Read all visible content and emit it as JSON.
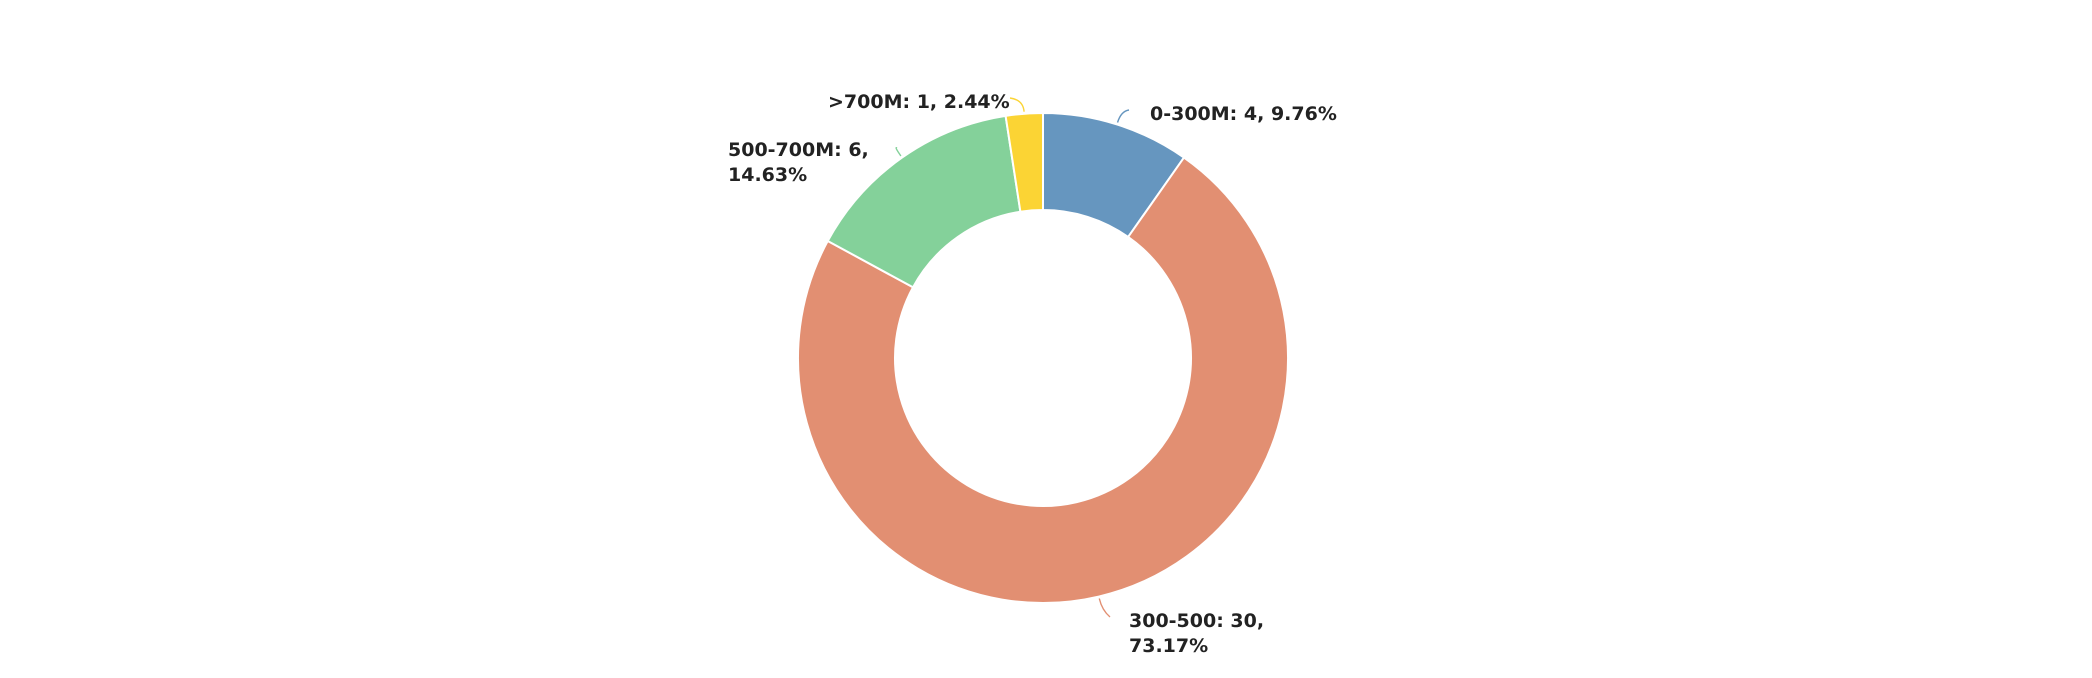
{
  "chart_data": {
    "type": "pie",
    "style": "donut",
    "slices": [
      {
        "name": "0-300M",
        "label_lines": [
          "0-300M: 4, 9.76%"
        ],
        "value": 4,
        "percent": 9.76,
        "color": "#6696bf"
      },
      {
        "name": "300-500",
        "label_lines": [
          "300-500: 30,",
          "73.17%"
        ],
        "value": 30,
        "percent": 73.17,
        "color": "#e28f72"
      },
      {
        "name": "500-700M",
        "label_lines": [
          "500-700M: 6,",
          "14.63%"
        ],
        "value": 6,
        "percent": 14.63,
        "color": "#84d19a"
      },
      {
        "name": ">700M",
        "label_lines": [
          ">700M: 1, 2.44%"
        ],
        "value": 1,
        "percent": 2.44,
        "color": "#fbd434"
      }
    ],
    "legend": "none"
  }
}
